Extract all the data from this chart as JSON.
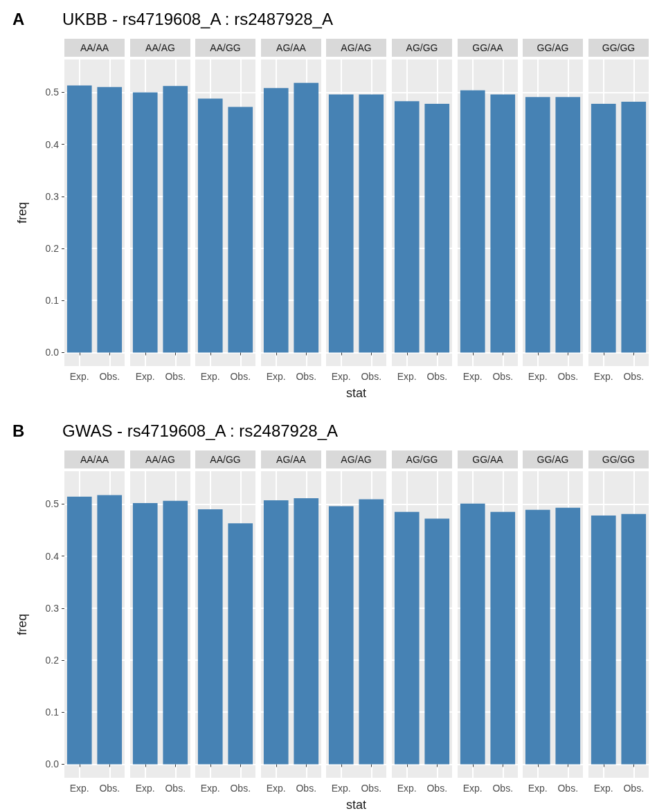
{
  "chart_data": [
    {
      "type": "other",
      "title": "UKBB - rs4719608_A : rs2487928_A",
      "annotations": [
        "A"
      ]
    },
    {
      "type": "bar",
      "title": "AA/AA",
      "categories": [
        "Exp.",
        "Obs."
      ],
      "values": [
        0.513,
        0.51
      ],
      "color": "#4682b4",
      "ylim": [
        -0.026,
        0.563
      ],
      "yticks": [
        {
          "value": 0,
          "label": "0.0"
        },
        0.1,
        0.2,
        0.3,
        0.4,
        0.5
      ],
      "grid": true,
      "ylabel": "freq"
    },
    {
      "type": "bar",
      "title": "AA/AG",
      "categories": [
        "Exp.",
        "Obs."
      ],
      "values": [
        0.5,
        0.512
      ],
      "color": "#4682b4",
      "ylim": [
        -0.026,
        0.563
      ],
      "yticks": [
        0,
        0.1,
        0.2,
        0.3,
        0.4,
        0.5
      ],
      "grid": true,
      "tick_labels": "x"
    },
    {
      "type": "bar",
      "title": "AA/GG",
      "categories": [
        "Exp.",
        "Obs."
      ],
      "values": [
        0.488,
        0.472
      ],
      "color": "#4682b4",
      "ylim": [
        -0.026,
        0.563
      ],
      "yticks": [
        0,
        0.1,
        0.2,
        0.3,
        0.4,
        0.5
      ],
      "grid": true,
      "tick_labels": "x"
    },
    {
      "type": "bar",
      "title": "AG/AA",
      "categories": [
        "Exp.",
        "Obs."
      ],
      "values": [
        0.508,
        0.518
      ],
      "color": "#4682b4",
      "ylim": [
        -0.026,
        0.563
      ],
      "yticks": [
        0,
        0.1,
        0.2,
        0.3,
        0.4,
        0.5
      ],
      "grid": true,
      "tick_labels": "x"
    },
    {
      "type": "bar",
      "title": "AG/AG",
      "categories": [
        "Exp.",
        "Obs."
      ],
      "values": [
        0.496,
        0.496
      ],
      "color": "#4682b4",
      "ylim": [
        -0.026,
        0.563
      ],
      "yticks": [
        0,
        0.1,
        0.2,
        0.3,
        0.4,
        0.5
      ],
      "grid": true,
      "tick_labels": "x",
      "xlabel": "stat"
    },
    {
      "type": "bar",
      "title": "AG/GG",
      "categories": [
        "Exp.",
        "Obs."
      ],
      "values": [
        0.483,
        0.478
      ],
      "color": "#4682b4",
      "ylim": [
        -0.026,
        0.563
      ],
      "yticks": [
        0,
        0.1,
        0.2,
        0.3,
        0.4,
        0.5
      ],
      "grid": true,
      "tick_labels": "x"
    },
    {
      "type": "bar",
      "title": "GG/AA",
      "categories": [
        "Exp.",
        "Obs."
      ],
      "values": [
        0.504,
        0.496
      ],
      "color": "#4682b4",
      "ylim": [
        -0.026,
        0.563
      ],
      "yticks": [
        0,
        0.1,
        0.2,
        0.3,
        0.4,
        0.5
      ],
      "grid": true,
      "tick_labels": "x"
    },
    {
      "type": "bar",
      "title": "GG/AG",
      "categories": [
        "Exp.",
        "Obs."
      ],
      "values": [
        0.491,
        0.491
      ],
      "color": "#4682b4",
      "ylim": [
        -0.026,
        0.563
      ],
      "yticks": [
        0,
        0.1,
        0.2,
        0.3,
        0.4,
        0.5
      ],
      "grid": true,
      "tick_labels": "x"
    },
    {
      "type": "bar",
      "title": "GG/GG",
      "categories": [
        "Exp.",
        "Obs."
      ],
      "values": [
        0.478,
        0.482
      ],
      "color": "#4682b4",
      "ylim": [
        -0.026,
        0.563
      ],
      "yticks": [
        0,
        0.1,
        0.2,
        0.3,
        0.4,
        0.5
      ],
      "grid": true,
      "tick_labels": "x"
    },
    {
      "type": "other",
      "title": "GWAS - rs4719608_A : rs2487928_A",
      "annotations": [
        "B"
      ]
    },
    {
      "type": "bar",
      "title": "AA/AA",
      "categories": [
        "Exp.",
        "Obs."
      ],
      "values": [
        0.514,
        0.517
      ],
      "color": "#4682b4",
      "ylim": [
        -0.026,
        0.563
      ],
      "yticks": [
        {
          "value": 0,
          "label": "0.0"
        },
        0.1,
        0.2,
        0.3,
        0.4,
        0.5
      ],
      "grid": true,
      "ylabel": "freq"
    },
    {
      "type": "bar",
      "title": "AA/AG",
      "categories": [
        "Exp.",
        "Obs."
      ],
      "values": [
        0.502,
        0.506
      ],
      "color": "#4682b4",
      "ylim": [
        -0.026,
        0.563
      ],
      "yticks": [
        0,
        0.1,
        0.2,
        0.3,
        0.4,
        0.5
      ],
      "grid": true,
      "tick_labels": "x"
    },
    {
      "type": "bar",
      "title": "AA/GG",
      "categories": [
        "Exp.",
        "Obs."
      ],
      "values": [
        0.49,
        0.463
      ],
      "color": "#4682b4",
      "ylim": [
        -0.026,
        0.563
      ],
      "yticks": [
        0,
        0.1,
        0.2,
        0.3,
        0.4,
        0.5
      ],
      "grid": true,
      "tick_labels": "x"
    },
    {
      "type": "bar",
      "title": "AG/AA",
      "categories": [
        "Exp.",
        "Obs."
      ],
      "values": [
        0.507,
        0.511
      ],
      "color": "#4682b4",
      "ylim": [
        -0.026,
        0.563
      ],
      "yticks": [
        0,
        0.1,
        0.2,
        0.3,
        0.4,
        0.5
      ],
      "grid": true,
      "tick_labels": "x"
    },
    {
      "type": "bar",
      "title": "AG/AG",
      "categories": [
        "Exp.",
        "Obs."
      ],
      "values": [
        0.496,
        0.509
      ],
      "color": "#4682b4",
      "ylim": [
        -0.026,
        0.563
      ],
      "yticks": [
        0,
        0.1,
        0.2,
        0.3,
        0.4,
        0.5
      ],
      "grid": true,
      "tick_labels": "x",
      "xlabel": "stat"
    },
    {
      "type": "bar",
      "title": "AG/GG",
      "categories": [
        "Exp.",
        "Obs."
      ],
      "values": [
        0.485,
        0.472
      ],
      "color": "#4682b4",
      "ylim": [
        -0.026,
        0.563
      ],
      "yticks": [
        0,
        0.1,
        0.2,
        0.3,
        0.4,
        0.5
      ],
      "grid": true,
      "tick_labels": "x"
    },
    {
      "type": "bar",
      "title": "GG/AA",
      "categories": [
        "Exp.",
        "Obs."
      ],
      "values": [
        0.501,
        0.485
      ],
      "color": "#4682b4",
      "ylim": [
        -0.026,
        0.563
      ],
      "yticks": [
        0,
        0.1,
        0.2,
        0.3,
        0.4,
        0.5
      ],
      "grid": true,
      "tick_labels": "x"
    },
    {
      "type": "bar",
      "title": "GG/AG",
      "categories": [
        "Exp.",
        "Obs."
      ],
      "values": [
        0.489,
        0.493
      ],
      "color": "#4682b4",
      "ylim": [
        -0.026,
        0.563
      ],
      "yticks": [
        0,
        0.1,
        0.2,
        0.3,
        0.4,
        0.5
      ],
      "grid": true,
      "tick_labels": "x"
    },
    {
      "type": "bar",
      "title": "GG/GG",
      "categories": [
        "Exp.",
        "Obs."
      ],
      "values": [
        0.478,
        0.481
      ],
      "color": "#4682b4",
      "ylim": [
        -0.026,
        0.563
      ],
      "yticks": [
        0,
        0.1,
        0.2,
        0.3,
        0.4,
        0.5
      ],
      "grid": true,
      "tick_labels": "x"
    }
  ]
}
